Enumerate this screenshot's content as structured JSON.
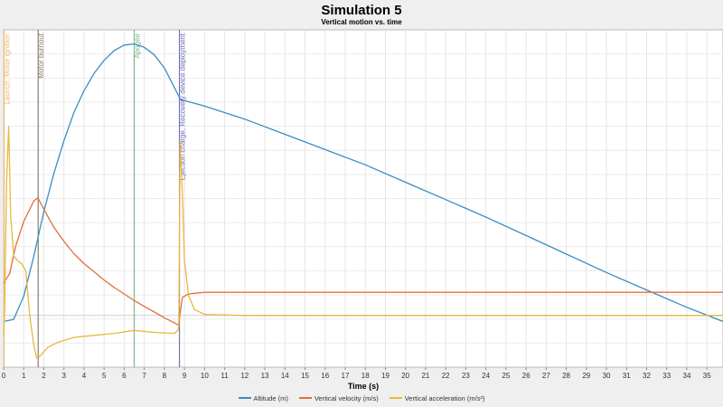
{
  "chart_data": {
    "type": "line",
    "title": "Simulation 5",
    "subtitle": "Vertical motion vs. time",
    "xlabel": "Time (s)",
    "xlim": [
      0,
      35.8
    ],
    "xticks": [
      0,
      1,
      2,
      3,
      4,
      5,
      6,
      7,
      8,
      9,
      10,
      11,
      12,
      13,
      14,
      15,
      16,
      17,
      18,
      19,
      20,
      21,
      22,
      23,
      24,
      25,
      26,
      27,
      28,
      29,
      30,
      31,
      32,
      33,
      34,
      35
    ],
    "grid": true,
    "legend_position": "bottom",
    "series": [
      {
        "name": "Altitude (m)",
        "color": "#3a8ec4",
        "x": [
          0,
          0.5,
          1.0,
          1.5,
          2.0,
          2.5,
          3.0,
          3.5,
          4.0,
          4.5,
          5.0,
          5.5,
          6.0,
          6.5,
          7.0,
          7.5,
          8.0,
          8.5,
          8.8,
          10,
          12,
          14,
          16,
          18,
          20,
          22,
          24,
          26,
          28,
          30,
          32,
          34,
          35.8
        ],
        "y": [
          0,
          2,
          23,
          60,
          101,
          136,
          166,
          192,
          212,
          228,
          240,
          249,
          254,
          255,
          252,
          245,
          233,
          215,
          204,
          198,
          186,
          172,
          158,
          144,
          128,
          112,
          96,
          79,
          62,
          45,
          29,
          13,
          0
        ]
      },
      {
        "name": "Vertical velocity (m/s)",
        "color": "#e07040",
        "x": [
          0,
          0.3,
          0.6,
          1.0,
          1.5,
          1.7,
          2.0,
          2.5,
          3.0,
          3.5,
          4.0,
          4.5,
          5.0,
          5.5,
          6.0,
          6.5,
          7.0,
          7.5,
          8.0,
          8.5,
          8.7,
          8.9,
          9.2,
          10,
          12,
          16,
          20,
          25,
          30,
          35.8
        ],
        "y": [
          0,
          12,
          45,
          75,
          100,
          104,
          90,
          68,
          51,
          36,
          24,
          14,
          4,
          -5,
          -13,
          -21,
          -28,
          -35,
          -42,
          -48,
          -51,
          -17,
          -13,
          -11,
          -11,
          -11,
          -11,
          -11,
          -11,
          -11
        ]
      },
      {
        "name": "Vertical acceleration (m/s²)",
        "color": "#e8b840",
        "x": [
          0,
          0.05,
          0.15,
          0.25,
          0.35,
          0.5,
          0.7,
          0.9,
          1.1,
          1.3,
          1.5,
          1.65,
          1.75,
          1.85,
          2.2,
          2.7,
          3.5,
          4.5,
          5.5,
          6.5,
          7.5,
          8.5,
          8.68,
          8.72,
          8.78,
          8.9,
          9.0,
          9.2,
          9.5,
          10,
          12,
          20,
          35.8
        ],
        "y": [
          -20,
          5,
          135,
          190,
          100,
          60,
          55,
          52,
          45,
          0,
          -30,
          -43,
          -42,
          -40,
          -32,
          -27,
          -22,
          -20,
          -18,
          -15,
          -17,
          -18,
          -15,
          -10,
          175,
          120,
          55,
          20,
          6,
          1,
          0,
          0,
          0
        ]
      }
    ],
    "annotations": [
      {
        "label": "Launch, Motor ignition",
        "x": 0.02,
        "color": "#e8b870"
      },
      {
        "label": "Motor burnout",
        "x": 1.72,
        "color": "#8a7f6e"
      },
      {
        "label": "Apogee",
        "x": 6.5,
        "color": "#7ab88a"
      },
      {
        "label": "Ejection charge, Recovery device deployment",
        "x": 8.75,
        "color": "#7070bb"
      }
    ]
  }
}
